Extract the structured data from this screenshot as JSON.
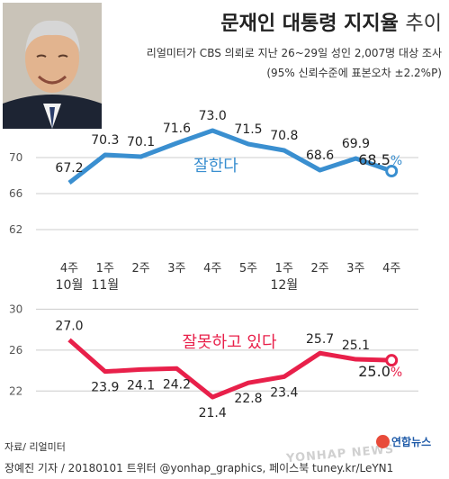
{
  "header": {
    "title": "문재인 대통령 지지율",
    "title_suffix": "추이",
    "subtitle": "리얼미터가 CBS 의뢰로 지난 26~29일 성인 2,007명 대상 조사",
    "note": "(95% 신뢰수준에 표본오차 ±2.2%P)"
  },
  "footer": {
    "source": "자료/ 리얼미터",
    "credit": "장예진 기자 / 20180101 트위터 @yonhap_graphics, 페이스북 tuney.kr/LeYN1",
    "logo": "연합뉴스",
    "watermark": "YONHAP NEWS"
  },
  "colors": {
    "positive": "#3a8fd0",
    "negative": "#e8204a",
    "grid": "#cccccc"
  },
  "chart_data": {
    "type": "line",
    "categories": [
      "4주",
      "1주",
      "2주",
      "3주",
      "4주",
      "5주",
      "1주",
      "2주",
      "3주",
      "4주"
    ],
    "month_labels": [
      {
        "index": 0,
        "label": "10월"
      },
      {
        "index": 1,
        "label": "11월"
      },
      {
        "index": 6,
        "label": "12월"
      }
    ],
    "series": [
      {
        "name": "잘한다",
        "values": [
          67.2,
          70.3,
          70.1,
          71.6,
          73.0,
          71.5,
          70.8,
          68.6,
          69.9,
          68.5
        ],
        "ylim": [
          60,
          74
        ],
        "yticks": [
          62,
          66,
          70
        ]
      },
      {
        "name": "잘못하고 있다",
        "values": [
          27.0,
          23.9,
          24.1,
          24.2,
          21.4,
          22.8,
          23.4,
          25.7,
          25.1,
          25.0
        ],
        "ylim": [
          20,
          31
        ],
        "yticks": [
          22,
          26,
          30
        ]
      }
    ],
    "last_value_labels": [
      "68.5%",
      "25.0%"
    ],
    "grid": true
  }
}
